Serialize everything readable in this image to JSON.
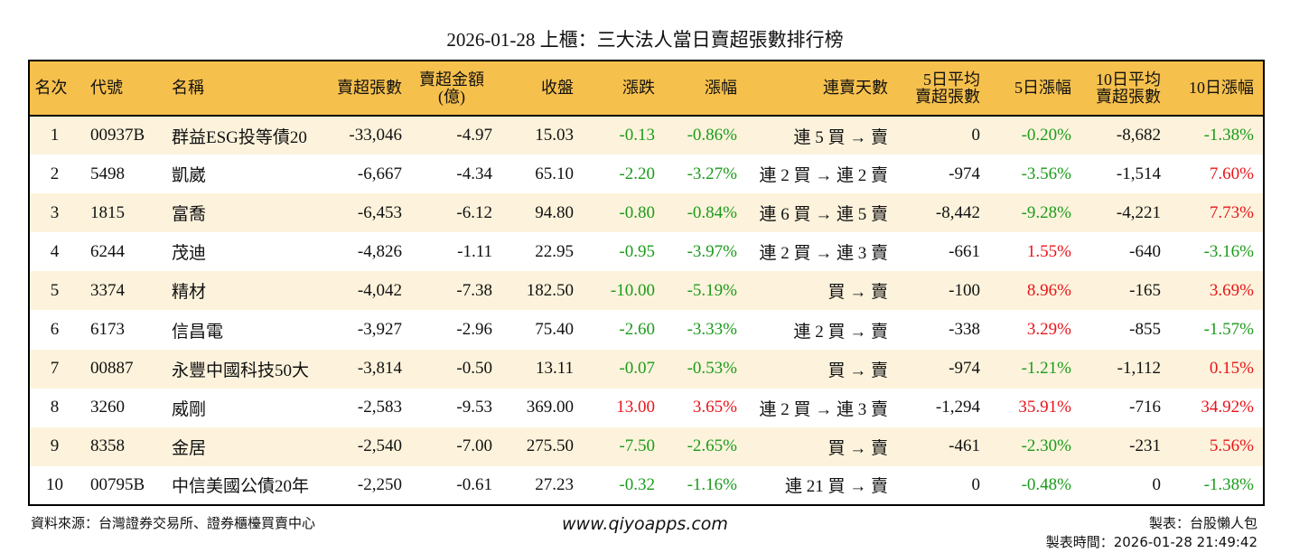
{
  "title": "2026-01-28 上櫃：三大法人當日賣超張數排行榜",
  "headers": [
    "名次",
    "代號",
    "名稱",
    "賣超張數",
    "賣超金額\n(億)",
    "收盤",
    "漲跌",
    "漲幅",
    "連賣天數",
    "5日平均\n賣超張數",
    "5日漲幅",
    "10日平均\n賣超張數",
    "10日漲幅"
  ],
  "colors": {
    "header": "#f6c04c",
    "row_alt": "#fdf3dc",
    "up": "#e8141a",
    "down": "#1b9b1b"
  },
  "rows": [
    [
      "1",
      "00937B",
      "群益ESG投等債20",
      "-33,046",
      "-4.97",
      "15.03",
      "-0.13",
      "-0.86%",
      "連 5 買 → 賣",
      "0",
      "-0.20%",
      "-8,682",
      "-1.38%"
    ],
    [
      "2",
      "5498",
      "凱崴",
      "-6,667",
      "-4.34",
      "65.10",
      "-2.20",
      "-3.27%",
      "連 2 買 → 連 2 賣",
      "-974",
      "-3.56%",
      "-1,514",
      "7.60%"
    ],
    [
      "3",
      "1815",
      "富喬",
      "-6,453",
      "-6.12",
      "94.80",
      "-0.80",
      "-0.84%",
      "連 6 買 → 連 5 賣",
      "-8,442",
      "-9.28%",
      "-4,221",
      "7.73%"
    ],
    [
      "4",
      "6244",
      "茂迪",
      "-4,826",
      "-1.11",
      "22.95",
      "-0.95",
      "-3.97%",
      "連 2 買 → 連 3 賣",
      "-661",
      "1.55%",
      "-640",
      "-3.16%"
    ],
    [
      "5",
      "3374",
      "精材",
      "-4,042",
      "-7.38",
      "182.50",
      "-10.00",
      "-5.19%",
      "買 → 賣",
      "-100",
      "8.96%",
      "-165",
      "3.69%"
    ],
    [
      "6",
      "6173",
      "信昌電",
      "-3,927",
      "-2.96",
      "75.40",
      "-2.60",
      "-3.33%",
      "連 2 買 → 賣",
      "-338",
      "3.29%",
      "-855",
      "-1.57%"
    ],
    [
      "7",
      "00887",
      "永豐中國科技50大",
      "-3,814",
      "-0.50",
      "13.11",
      "-0.07",
      "-0.53%",
      "買 → 賣",
      "-974",
      "-1.21%",
      "-1,112",
      "0.15%"
    ],
    [
      "8",
      "3260",
      "威剛",
      "-2,583",
      "-9.53",
      "369.00",
      "13.00",
      "3.65%",
      "連 2 買 → 連 3 賣",
      "-1,294",
      "35.91%",
      "-716",
      "34.92%"
    ],
    [
      "9",
      "8358",
      "金居",
      "-2,540",
      "-7.00",
      "275.50",
      "-7.50",
      "-2.65%",
      "買 → 賣",
      "-461",
      "-2.30%",
      "-231",
      "5.56%"
    ],
    [
      "10",
      "00795B",
      "中信美國公債20年",
      "-2,250",
      "-0.61",
      "27.23",
      "-0.32",
      "-1.16%",
      "連 21 買 → 賣",
      "0",
      "-0.48%",
      "0",
      "-1.38%"
    ]
  ],
  "footer": {
    "source": "資料來源：台灣證券交易所、證券櫃檯買賣中心",
    "site": "www.qiyoapps.com",
    "maker": "製表：台股懶人包",
    "time": "製表時間：2026-01-28 21:49:42"
  }
}
